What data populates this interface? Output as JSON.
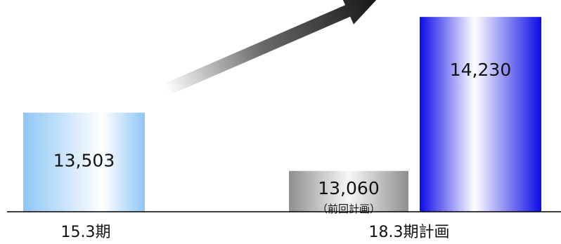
{
  "chart_data": {
    "type": "bar",
    "categories": [
      "15.3期",
      "18.3期計画"
    ],
    "bars": [
      {
        "category": "15.3期",
        "value": 13503,
        "label": "13,503",
        "style": "light-blue"
      },
      {
        "category": "18.3期計画",
        "value": 13060,
        "label": "13,060",
        "sublabel": "（前回計画）",
        "style": "gray"
      },
      {
        "category": "18.3期計画",
        "value": 14230,
        "label": "14,230",
        "style": "blue"
      }
    ],
    "ylim": [
      12750,
      14300
    ],
    "colors": {
      "light_blue": "#8ec6f6",
      "gray": "#9b9b9b",
      "blue": "#1010e6",
      "arrow": "#1e1e1e",
      "axis": "#000000"
    },
    "annotations": [
      {
        "type": "arrow",
        "from": "15.3期",
        "to": "18.3期計画",
        "meaning": "increase"
      }
    ]
  }
}
